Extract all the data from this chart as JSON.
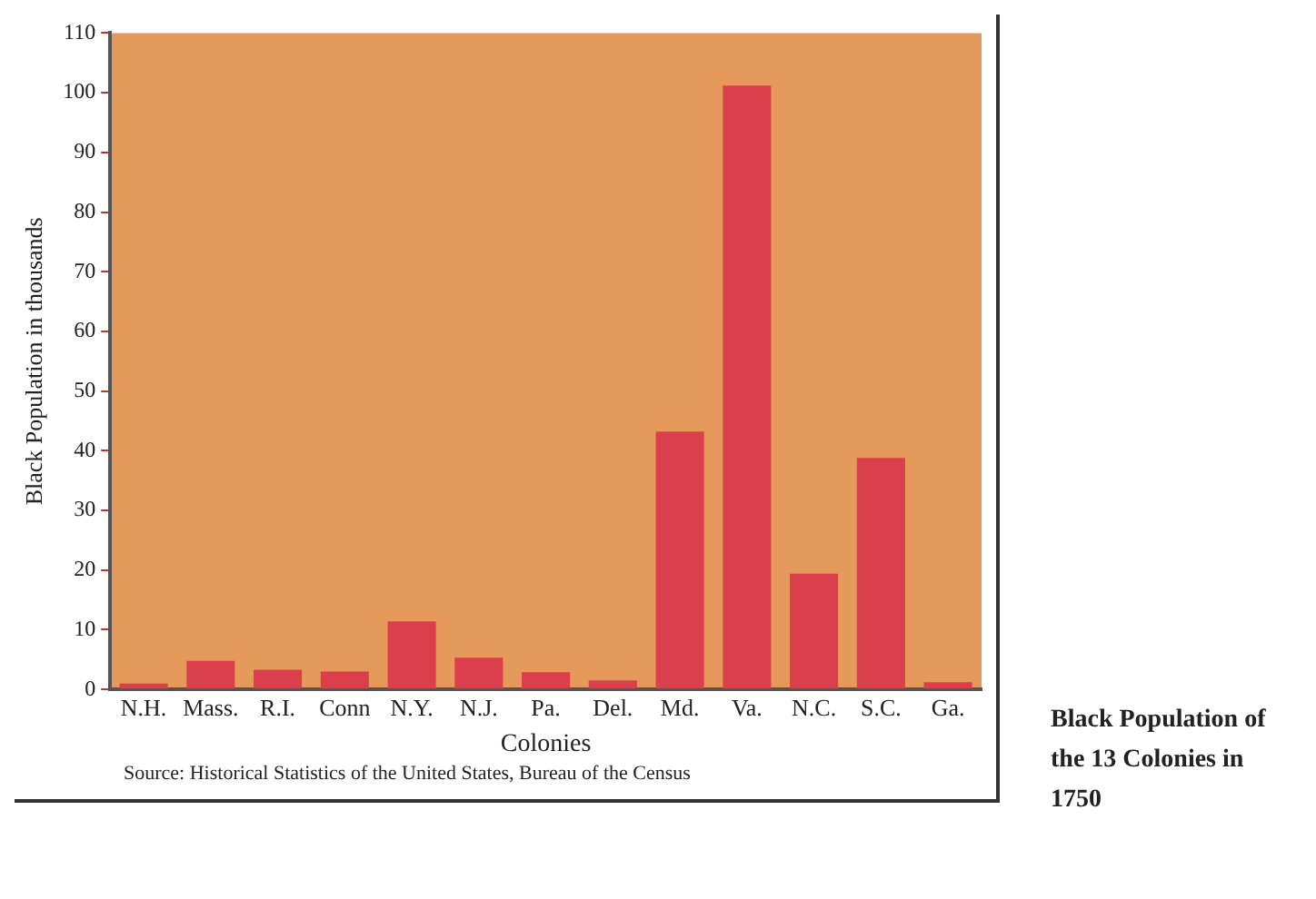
{
  "chart_data": {
    "type": "bar",
    "title": "Black Population of the 13 Colonies in 1750",
    "xlabel": "Colonies",
    "ylabel": "Black Population in thousands",
    "annotations": [
      "Source: Historical Statistics of the United States, Bureau of the Census"
    ],
    "categories": [
      "N.H.",
      "Mass.",
      "R.I.",
      "Conn",
      "N.Y.",
      "N.J.",
      "Pa.",
      "Del.",
      "Md.",
      "Va.",
      "N.C.",
      "S.C.",
      "Ga."
    ],
    "values": [
      1,
      4.8,
      3.3,
      3,
      11.4,
      5.3,
      2.9,
      1.5,
      43.2,
      101.2,
      19.4,
      38.8,
      1.2
    ],
    "color": "#dc3f4c",
    "ylim": [
      0,
      110
    ],
    "yticks": [
      0,
      10,
      20,
      30,
      40,
      50,
      60,
      70,
      80,
      90,
      100,
      110
    ],
    "grid": false,
    "legend": false
  }
}
